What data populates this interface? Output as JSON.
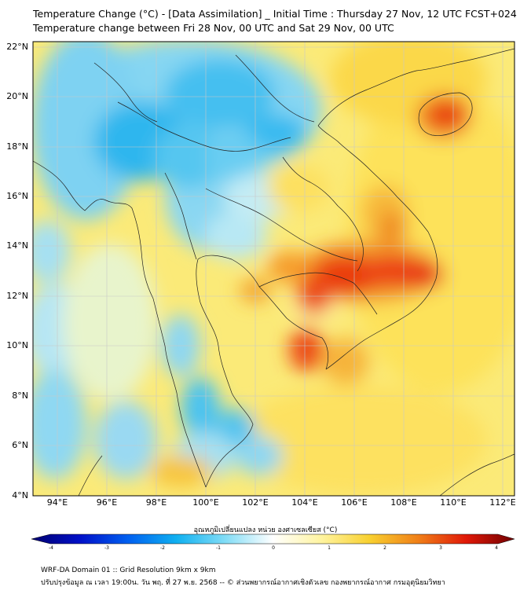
{
  "title": {
    "line1": "Temperature Change (°C) - [Data Assimilation] _ Initial Time : Thursday 27 Nov, 12 UTC FCST+024",
    "line2": "Temperature change between Fri 28 Nov, 00 UTC and Sat 29 Nov, 00 UTC"
  },
  "axes": {
    "lat_labels": [
      "22°N",
      "20°N",
      "18°N",
      "16°N",
      "14°N",
      "12°N",
      "10°N",
      "8°N",
      "6°N",
      "4°N"
    ],
    "lon_labels": [
      "94°E",
      "96°E",
      "98°E",
      "100°E",
      "102°E",
      "104°E",
      "106°E",
      "108°E",
      "110°E",
      "112°E"
    ]
  },
  "colorbar": {
    "title": "อุณหภูมิเปลี่ยนแปลง หน่วย องศาเซลเซียส (°C)",
    "ticks": [
      "-4",
      "-3",
      "-2",
      "-1",
      "0",
      "1",
      "2",
      "3",
      "4"
    ],
    "min_value": -4,
    "max_value": 4
  },
  "footer": {
    "line1": "WRF-DA Domain 01 :: Grid Resolution 9km x 9km",
    "line2": "ปรับปรุงข้อมูล ณ เวลา 19:00น. วัน พฤ. ที่ 27 พ.ย. 2568 -- © ส่วนพยากรณ์อากาศเชิงตัวเลข กองพยากรณ์อากาศ กรมอุตุนิยมวิทยา"
  },
  "colors": {
    "cold_strong": "#08a4e8",
    "cold": "#5fcdf4",
    "neutral": "#e6f6f8",
    "warm_light": "#fff3a0",
    "warm": "#f7cc2e",
    "hot": "#f08a1c",
    "hottest": "#e8200a"
  }
}
